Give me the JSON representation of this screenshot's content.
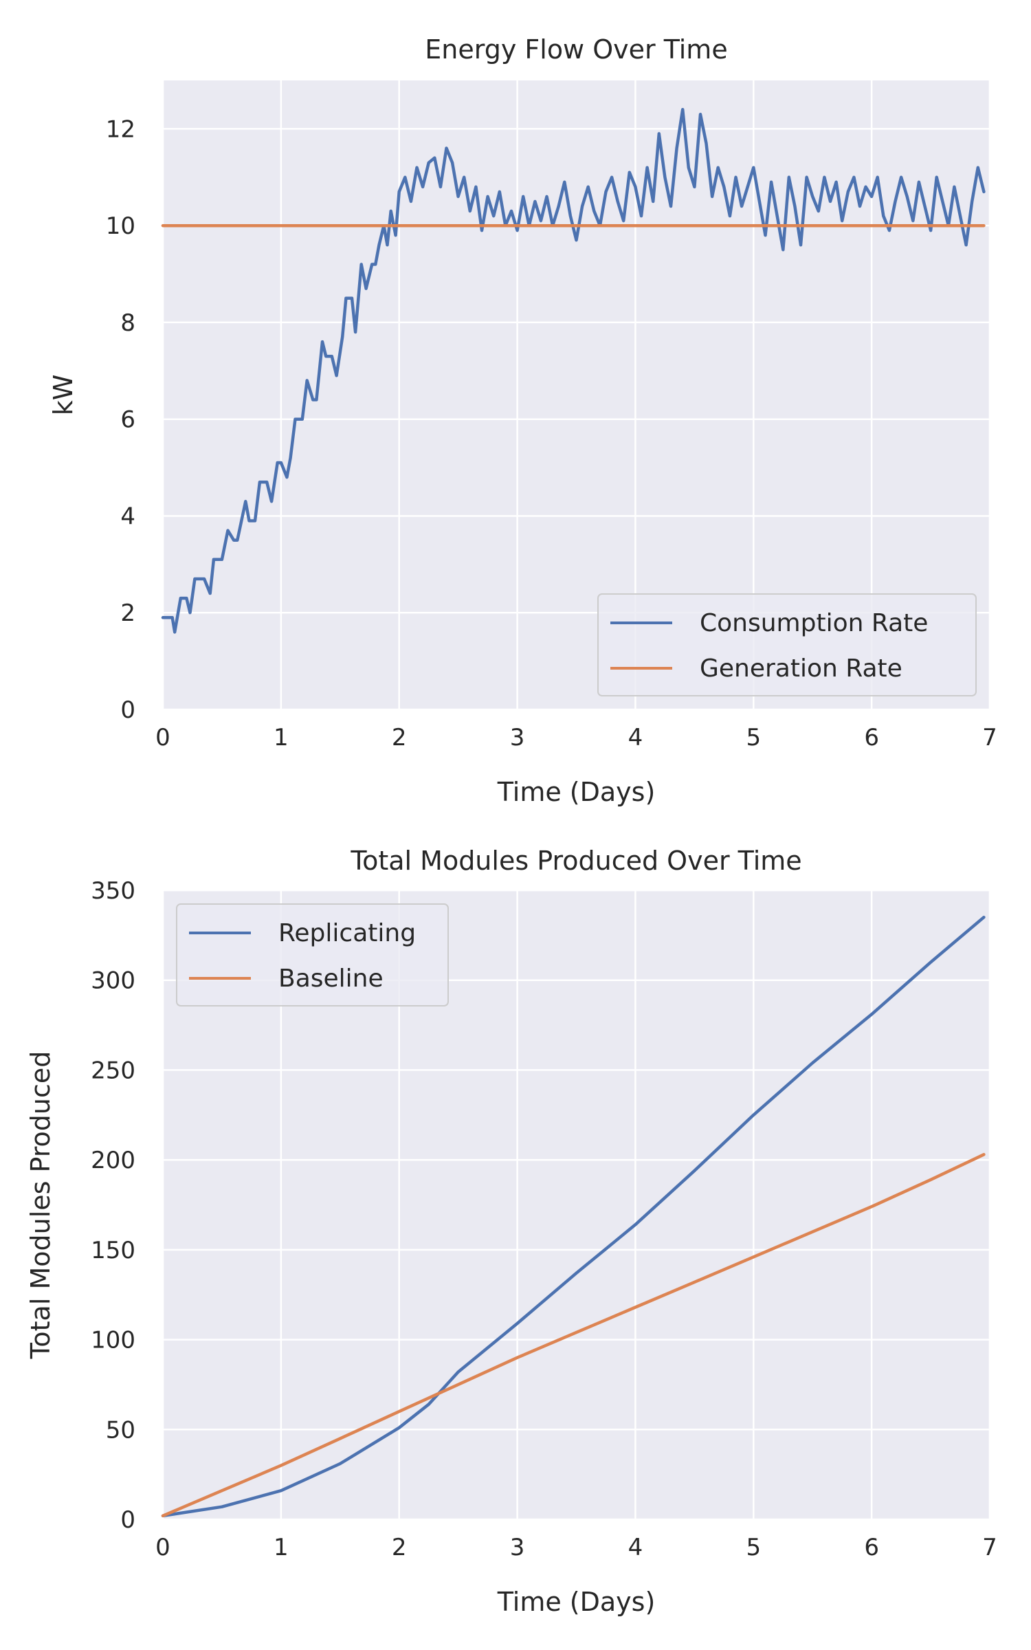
{
  "chart_data": [
    {
      "type": "line",
      "title": "Energy Flow Over Time",
      "xlabel": "Time (Days)",
      "ylabel": "kW",
      "xlim": [
        0,
        7
      ],
      "ylim": [
        0,
        13
      ],
      "x_ticks": [
        "0",
        "1",
        "2",
        "3",
        "4",
        "5",
        "6",
        "7"
      ],
      "y_ticks": [
        "0",
        "2",
        "4",
        "6",
        "8",
        "10",
        "12"
      ],
      "grid": true,
      "legend_position": "lower-right",
      "series": [
        {
          "name": "Consumption Rate",
          "color": "#4c72b0",
          "x": [
            0,
            0.08,
            0.1,
            0.15,
            0.2,
            0.23,
            0.27,
            0.3,
            0.35,
            0.4,
            0.43,
            0.47,
            0.5,
            0.55,
            0.6,
            0.63,
            0.7,
            0.73,
            0.78,
            0.82,
            0.88,
            0.92,
            0.97,
            1.0,
            1.05,
            1.08,
            1.12,
            1.15,
            1.18,
            1.22,
            1.27,
            1.3,
            1.35,
            1.38,
            1.43,
            1.47,
            1.52,
            1.55,
            1.6,
            1.63,
            1.68,
            1.72,
            1.77,
            1.8,
            1.83,
            1.87,
            1.9,
            1.93,
            1.97,
            2.0,
            2.05,
            2.1,
            2.15,
            2.2,
            2.25,
            2.3,
            2.35,
            2.4,
            2.45,
            2.5,
            2.55,
            2.6,
            2.65,
            2.7,
            2.75,
            2.8,
            2.85,
            2.9,
            2.95,
            3.0,
            3.05,
            3.1,
            3.15,
            3.2,
            3.25,
            3.3,
            3.35,
            3.4,
            3.45,
            3.5,
            3.55,
            3.6,
            3.65,
            3.7,
            3.75,
            3.8,
            3.85,
            3.9,
            3.95,
            4.0,
            4.05,
            4.1,
            4.15,
            4.2,
            4.25,
            4.3,
            4.35,
            4.4,
            4.45,
            4.5,
            4.55,
            4.6,
            4.65,
            4.7,
            4.75,
            4.8,
            4.85,
            4.9,
            4.95,
            5.0,
            5.05,
            5.1,
            5.15,
            5.2,
            5.25,
            5.3,
            5.35,
            5.4,
            5.45,
            5.5,
            5.55,
            5.6,
            5.65,
            5.7,
            5.75,
            5.8,
            5.85,
            5.9,
            5.95,
            6.0,
            6.05,
            6.1,
            6.15,
            6.2,
            6.25,
            6.3,
            6.35,
            6.4,
            6.45,
            6.5,
            6.55,
            6.6,
            6.65,
            6.7,
            6.75,
            6.8,
            6.85,
            6.9,
            6.95
          ],
          "y": [
            1.9,
            1.9,
            1.6,
            2.3,
            2.3,
            2.0,
            2.7,
            2.7,
            2.7,
            2.4,
            3.1,
            3.1,
            3.1,
            3.7,
            3.5,
            3.5,
            4.3,
            3.9,
            3.9,
            4.7,
            4.7,
            4.3,
            5.1,
            5.1,
            4.8,
            5.2,
            6.0,
            6.0,
            6.0,
            6.8,
            6.4,
            6.4,
            7.6,
            7.3,
            7.3,
            6.9,
            7.7,
            8.5,
            8.5,
            7.8,
            9.2,
            8.7,
            9.2,
            9.2,
            9.6,
            10.0,
            9.6,
            10.3,
            9.8,
            10.7,
            11.0,
            10.5,
            11.2,
            10.8,
            11.3,
            11.4,
            10.8,
            11.6,
            11.3,
            10.6,
            11.0,
            10.3,
            10.8,
            9.9,
            10.6,
            10.2,
            10.7,
            10.0,
            10.3,
            9.9,
            10.6,
            10.0,
            10.5,
            10.1,
            10.6,
            10.0,
            10.4,
            10.9,
            10.2,
            9.7,
            10.4,
            10.8,
            10.3,
            10.0,
            10.7,
            11.0,
            10.5,
            10.1,
            11.1,
            10.8,
            10.2,
            11.2,
            10.5,
            11.9,
            11.0,
            10.4,
            11.6,
            12.4,
            11.2,
            10.8,
            12.3,
            11.7,
            10.6,
            11.2,
            10.8,
            10.2,
            11.0,
            10.4,
            10.8,
            11.2,
            10.5,
            9.8,
            10.9,
            10.2,
            9.5,
            11.0,
            10.4,
            9.6,
            11.0,
            10.6,
            10.3,
            11.0,
            10.5,
            10.9,
            10.1,
            10.7,
            11.0,
            10.4,
            10.8,
            10.6,
            11.0,
            10.2,
            9.9,
            10.5,
            11.0,
            10.6,
            10.1,
            10.9,
            10.4,
            9.9,
            11.0,
            10.5,
            10.0,
            10.8,
            10.2,
            9.6,
            10.5,
            11.2,
            10.7
          ]
        },
        {
          "name": "Generation Rate",
          "color": "#dd8452",
          "x": [
            0,
            6.95
          ],
          "y": [
            10,
            10
          ]
        }
      ]
    },
    {
      "type": "line",
      "title": "Total Modules Produced Over Time",
      "xlabel": "Time (Days)",
      "ylabel": "Total Modules Produced",
      "xlim": [
        0,
        7
      ],
      "ylim": [
        0,
        350
      ],
      "x_ticks": [
        "0",
        "1",
        "2",
        "3",
        "4",
        "5",
        "6",
        "7"
      ],
      "y_ticks": [
        "0",
        "50",
        "100",
        "150",
        "200",
        "250",
        "300",
        "350"
      ],
      "grid": true,
      "legend_position": "top-left",
      "series": [
        {
          "name": "Replicating",
          "color": "#4c72b0",
          "x": [
            0,
            0.5,
            1.0,
            1.5,
            2.0,
            2.25,
            2.5,
            3.0,
            3.5,
            4.0,
            4.5,
            5.0,
            5.5,
            6.0,
            6.5,
            6.95
          ],
          "y": [
            2,
            7,
            16,
            31,
            51,
            64,
            82,
            109,
            137,
            164,
            194,
            225,
            254,
            281,
            310,
            335
          ]
        },
        {
          "name": "Baseline",
          "color": "#dd8452",
          "x": [
            0,
            0.5,
            1.0,
            1.5,
            2.0,
            2.5,
            3.0,
            3.5,
            4.0,
            4.5,
            5.0,
            5.5,
            6.0,
            6.5,
            6.95
          ],
          "y": [
            2,
            16,
            30,
            45,
            60,
            75,
            90,
            104,
            118,
            132,
            146,
            160,
            174,
            189,
            203
          ]
        }
      ]
    }
  ]
}
